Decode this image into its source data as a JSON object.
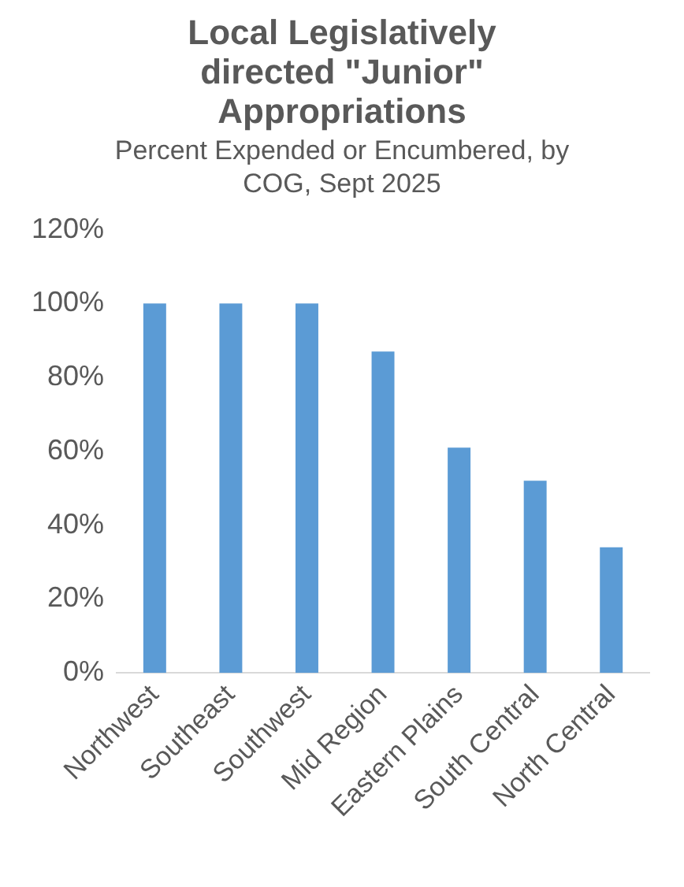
{
  "chart_data": {
    "type": "bar",
    "title": "Local Legislatively directed \"Junior\" Appropriations",
    "subtitle": "Percent Expended or Encumbered, by COG, Sept 2025",
    "categories": [
      "Northwest",
      "Southeast",
      "Southwest",
      "Mid Region",
      "Eastern Plains",
      "South Central",
      "North Central"
    ],
    "values": [
      100,
      100,
      100,
      87,
      61,
      52,
      34
    ],
    "color": "#5b9bd5",
    "ylim": [
      0,
      120
    ],
    "yticks": [
      {
        "value": 0,
        "label": "0%"
      },
      {
        "value": 20,
        "label": "20%"
      },
      {
        "value": 40,
        "label": "40%"
      },
      {
        "value": 60,
        "label": "60%"
      },
      {
        "value": 80,
        "label": "80%"
      },
      {
        "value": 100,
        "label": "100%"
      },
      {
        "value": 120,
        "label": "120%"
      }
    ],
    "grid": false,
    "legend": false
  }
}
